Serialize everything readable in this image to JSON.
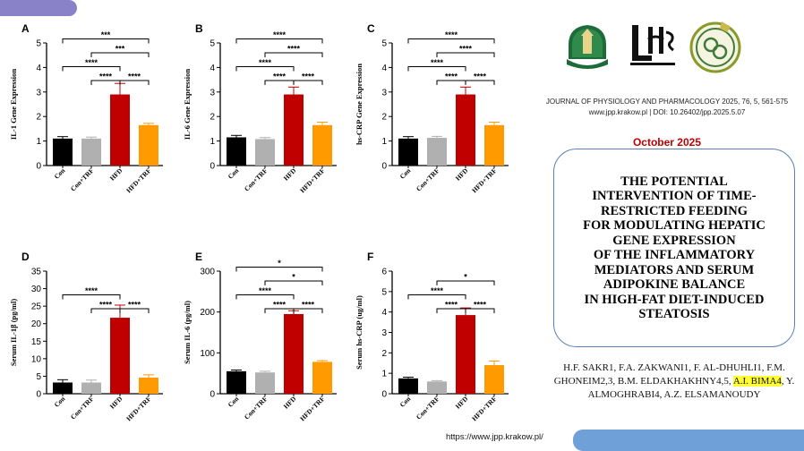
{
  "colors": {
    "accent_bar": "#8a82c8",
    "footer_bar": "#6fa0d8",
    "box_border": "#5b7fb5",
    "date": "#c00000",
    "bar_con": "#000000",
    "bar_contrf": "#b0b0b0",
    "bar_hfd": "#c00000",
    "bar_hfdtrf": "#ff9a00",
    "highlight": "#ffff33"
  },
  "header": {
    "journal_line1": "JOURNAL OF PHYSIOLOGY AND PHARMACOLOGY 2025, 76, 5, 561-575",
    "journal_line2": "www.jpp.krakow.pl | DOI: 10.26402/jpp.2025.5.07",
    "logos": [
      "university-seal-logo",
      "lung-care-society-logo",
      "society-emblem-logo"
    ]
  },
  "date": "October 2025",
  "title": "THE POTENTIAL\nINTERVENTION OF TIME-\nRESTRICTED FEEDING\nFOR MODULATING HEPATIC\nGENE EXPRESSION\nOF THE INFLAMMATORY\nMEDIATORS AND SERUM\nADIPOKINE BALANCE\nIN HIGH-FAT DIET-INDUCED\nSTEATOSIS",
  "authors": {
    "before": "H.F. SAKR1, F.A. ZAKWANI1, F. AL-DHUHLI1, F.M. GHONEIM2,3, B.M. ELDAKHAKHNY4,5, ",
    "highlighted": "A.I. BIMA4",
    "after": ", Y. ALMOGHRABI4, A.Z. ELSAMANOUDY"
  },
  "footer": {
    "url": "https://www.jpp.krakow.pl/"
  },
  "chart_data": [
    {
      "panel": "A",
      "type": "bar",
      "categories": [
        "Con",
        "Con+TRF",
        "HFD",
        "HFD+TRF"
      ],
      "values": [
        1.1,
        1.1,
        2.9,
        1.65
      ],
      "errors": [
        0.08,
        0.06,
        0.45,
        0.07
      ],
      "ylabel": "IL-1 Gene Expression",
      "ylim": [
        0,
        5
      ],
      "yticks": [
        "0",
        "1",
        "2",
        "3",
        "4",
        "5"
      ],
      "brackets": [
        {
          "from": 0,
          "to": 2,
          "label": "****",
          "level": 2
        },
        {
          "from": 0,
          "to": 3,
          "label": "***",
          "level": 4
        },
        {
          "from": 1,
          "to": 3,
          "label": "***",
          "level": 3
        },
        {
          "from": 1,
          "to": 2,
          "label": "****",
          "level": 1
        },
        {
          "from": 2,
          "to": 3,
          "label": "****",
          "level": 1
        }
      ]
    },
    {
      "panel": "B",
      "type": "bar",
      "categories": [
        "Con",
        "Con+TRF",
        "HFD",
        "HFD+TRF"
      ],
      "values": [
        1.15,
        1.08,
        2.9,
        1.65
      ],
      "errors": [
        0.08,
        0.06,
        0.3,
        0.12
      ],
      "ylabel": "IL-6 Gene Expression",
      "ylim": [
        0,
        5
      ],
      "yticks": [
        "0",
        "1",
        "2",
        "3",
        "4",
        "5"
      ],
      "brackets": [
        {
          "from": 0,
          "to": 2,
          "label": "****",
          "level": 2
        },
        {
          "from": 0,
          "to": 3,
          "label": "****",
          "level": 4
        },
        {
          "from": 1,
          "to": 3,
          "label": "****",
          "level": 3
        },
        {
          "from": 1,
          "to": 2,
          "label": "****",
          "level": 1
        },
        {
          "from": 2,
          "to": 3,
          "label": "****",
          "level": 1
        }
      ]
    },
    {
      "panel": "C",
      "type": "bar",
      "categories": [
        "Con",
        "Con+TRF",
        "HFD",
        "HFD+TRF"
      ],
      "values": [
        1.1,
        1.13,
        2.9,
        1.65
      ],
      "errors": [
        0.08,
        0.06,
        0.3,
        0.12
      ],
      "ylabel": "hs-CRP Gene Expression",
      "ylim": [
        0,
        5
      ],
      "yticks": [
        "0",
        "1",
        "2",
        "3",
        "4",
        "5"
      ],
      "brackets": [
        {
          "from": 0,
          "to": 2,
          "label": "****",
          "level": 2
        },
        {
          "from": 0,
          "to": 3,
          "label": "****",
          "level": 4
        },
        {
          "from": 1,
          "to": 3,
          "label": "****",
          "level": 3
        },
        {
          "from": 1,
          "to": 2,
          "label": "****",
          "level": 1
        },
        {
          "from": 2,
          "to": 3,
          "label": "****",
          "level": 1
        }
      ]
    },
    {
      "panel": "D",
      "type": "bar",
      "categories": [
        "Con",
        "Con+TRF",
        "HFD",
        "HFD+TRF"
      ],
      "values": [
        3.2,
        3.2,
        21.7,
        4.6
      ],
      "errors": [
        0.8,
        0.7,
        3.6,
        0.8
      ],
      "ylabel": "Serum IL-1β (pg/ml)",
      "ylim": [
        0,
        35
      ],
      "yticks": [
        "0",
        "5",
        "10",
        "15",
        "20",
        "25",
        "30",
        "35"
      ],
      "brackets": [
        {
          "from": 0,
          "to": 2,
          "label": "****",
          "level": 2
        },
        {
          "from": 1,
          "to": 2,
          "label": "****",
          "level": 1
        },
        {
          "from": 2,
          "to": 3,
          "label": "****",
          "level": 1
        }
      ]
    },
    {
      "panel": "E",
      "type": "bar",
      "categories": [
        "Con",
        "Con+TRF",
        "HFD",
        "HFD+TRF"
      ],
      "values": [
        55,
        52,
        195,
        78
      ],
      "errors": [
        3,
        3,
        8,
        3
      ],
      "ylabel": "Serum IL-6 (pg/ml)",
      "ylim": [
        0,
        300
      ],
      "yticks": [
        "0",
        "100",
        "200",
        "300"
      ],
      "brackets": [
        {
          "from": 0,
          "to": 2,
          "label": "****",
          "level": 2
        },
        {
          "from": 0,
          "to": 3,
          "label": "*",
          "level": 4
        },
        {
          "from": 1,
          "to": 3,
          "label": "*",
          "level": 3
        },
        {
          "from": 1,
          "to": 2,
          "label": "****",
          "level": 1
        },
        {
          "from": 2,
          "to": 3,
          "label": "****",
          "level": 1
        }
      ]
    },
    {
      "panel": "F",
      "type": "bar",
      "categories": [
        "Con",
        "Con+TRF",
        "HFD",
        "HFD+TRF"
      ],
      "values": [
        0.75,
        0.6,
        3.85,
        1.4
      ],
      "errors": [
        0.06,
        0.04,
        0.35,
        0.2
      ],
      "ylabel": "Serum hs-CRP (ug/ml)",
      "ylim": [
        0,
        6
      ],
      "yticks": [
        "0",
        "1",
        "2",
        "3",
        "4",
        "5",
        "6"
      ],
      "brackets": [
        {
          "from": 0,
          "to": 2,
          "label": "****",
          "level": 2
        },
        {
          "from": 1,
          "to": 3,
          "label": "*",
          "level": 3
        },
        {
          "from": 1,
          "to": 2,
          "label": "****",
          "level": 1
        },
        {
          "from": 2,
          "to": 3,
          "label": "****",
          "level": 1
        }
      ]
    }
  ]
}
